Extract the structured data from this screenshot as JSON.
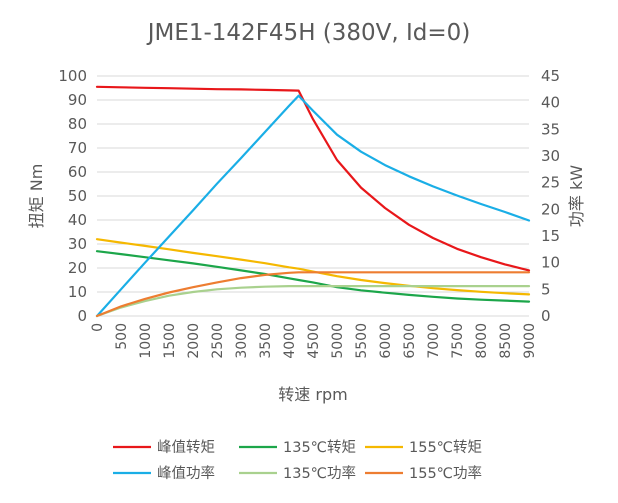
{
  "chart_data": {
    "type": "line",
    "title": "JME1-142F45H (380V, Id=0)",
    "xlabel": "转速 rpm",
    "ylabel_left": "扭矩 Nm",
    "ylabel_right": "功率 kW",
    "xlim": [
      0,
      9000
    ],
    "ylim_left": [
      0,
      100
    ],
    "ylim_right": [
      0,
      45
    ],
    "x_ticks": [
      "0",
      "500",
      "1000",
      "1500",
      "2000",
      "2500",
      "3000",
      "3500",
      "4000",
      "4500",
      "5000",
      "5500",
      "6000",
      "6500",
      "7000",
      "7500",
      "8000",
      "8500",
      "9000"
    ],
    "y_ticks_left": [
      "0",
      "10",
      "20",
      "30",
      "40",
      "50",
      "60",
      "70",
      "80",
      "90",
      "100"
    ],
    "y_ticks_right": [
      "0",
      "5",
      "10",
      "15",
      "20",
      "25",
      "30",
      "35",
      "40",
      "45"
    ],
    "grid": true,
    "legend_position": "bottom",
    "x": [
      0,
      500,
      1000,
      1500,
      2000,
      2500,
      3000,
      3500,
      4000,
      4200,
      4500,
      5000,
      5500,
      6000,
      6500,
      7000,
      7500,
      8000,
      8500,
      9000
    ],
    "series": [
      {
        "name": "峰值转矩",
        "axis": "left",
        "color": "#e8171a",
        "values": [
          95.5,
          95.3,
          95.1,
          94.9,
          94.7,
          94.5,
          94.4,
          94.2,
          94.0,
          93.9,
          82.0,
          65.0,
          53.5,
          45.0,
          38.0,
          32.5,
          28.0,
          24.5,
          21.5,
          19.0
        ]
      },
      {
        "name": "135℃转矩",
        "axis": "left",
        "color": "#1ca64a",
        "values": [
          27.0,
          25.8,
          24.5,
          23.2,
          21.9,
          20.5,
          19.0,
          17.5,
          15.7,
          15.0,
          14.0,
          12.0,
          10.7,
          9.7,
          8.8,
          8.0,
          7.3,
          6.8,
          6.4,
          6.0
        ]
      },
      {
        "name": "155℃转矩",
        "axis": "left",
        "color": "#f5b800",
        "values": [
          32.0,
          30.6,
          29.2,
          27.8,
          26.3,
          24.9,
          23.5,
          22.0,
          20.3,
          19.7,
          18.5,
          16.6,
          15.0,
          13.7,
          12.6,
          11.6,
          10.8,
          10.1,
          9.5,
          9.0
        ]
      },
      {
        "name": "峰值功率",
        "axis": "right",
        "color": "#1aaee6",
        "values": [
          0,
          5.0,
          10.0,
          14.9,
          19.8,
          24.8,
          29.6,
          34.5,
          39.4,
          41.3,
          38.5,
          34.0,
          30.8,
          28.3,
          26.2,
          24.3,
          22.6,
          21.0,
          19.5,
          17.9
        ]
      },
      {
        "name": "135℃功率",
        "axis": "right",
        "color": "#a9d18e",
        "values": [
          0,
          1.6,
          2.8,
          3.8,
          4.5,
          5.0,
          5.3,
          5.5,
          5.6,
          5.6,
          5.6,
          5.6,
          5.6,
          5.6,
          5.6,
          5.6,
          5.6,
          5.6,
          5.6,
          5.6
        ]
      },
      {
        "name": "155℃功率",
        "axis": "right",
        "color": "#ed7d31",
        "values": [
          0,
          1.8,
          3.2,
          4.4,
          5.4,
          6.3,
          7.1,
          7.7,
          8.1,
          8.2,
          8.2,
          8.2,
          8.2,
          8.2,
          8.2,
          8.2,
          8.2,
          8.2,
          8.2,
          8.2
        ]
      }
    ]
  }
}
